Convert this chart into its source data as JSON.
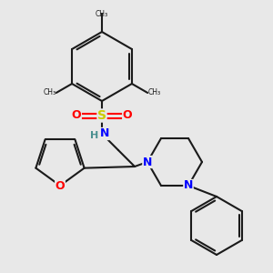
{
  "bg": "#e8e8e8",
  "bond_color": "#1a1a1a",
  "bw": 1.5,
  "N_color": "#0000ff",
  "O_color": "#ff0000",
  "S_color": "#cccc00",
  "H_color": "#4a9090",
  "figsize": [
    3.0,
    3.0
  ],
  "dpi": 100,
  "xlim": [
    0,
    300
  ],
  "ylim": [
    0,
    300
  ]
}
